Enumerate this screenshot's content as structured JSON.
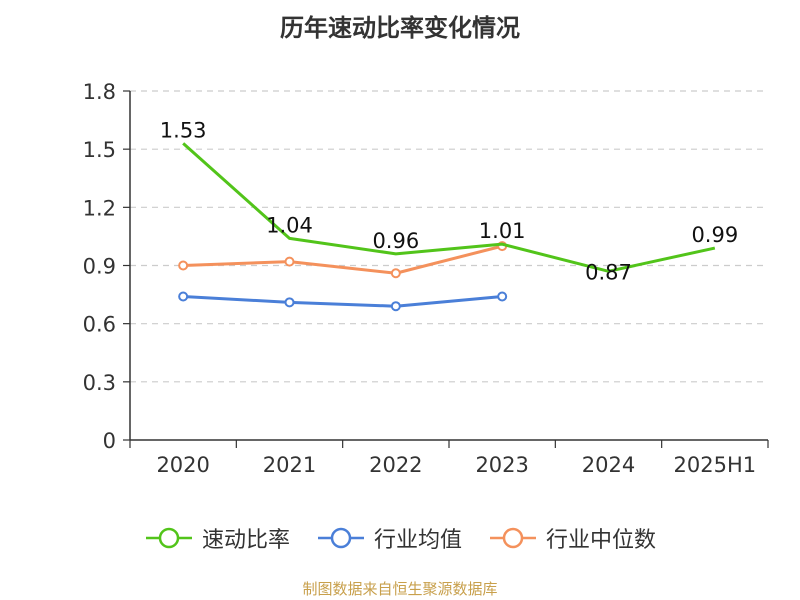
{
  "title": "历年速动比率变化情况",
  "source_note": "制图数据来自恒生聚源数据库",
  "chart_data": {
    "type": "line",
    "categories": [
      "2020",
      "2021",
      "2022",
      "2023",
      "2024",
      "2025H1"
    ],
    "ylim": [
      0,
      1.8
    ],
    "yticks": [
      "0",
      "0.3",
      "0.6",
      "0.9",
      "1.2",
      "1.5",
      "1.8"
    ],
    "grid": true,
    "legend_position": "bottom",
    "series": [
      {
        "name": "速动比率",
        "color": "#52c41a",
        "values": [
          1.53,
          1.04,
          0.96,
          1.01,
          0.87,
          0.99
        ],
        "labels": [
          "1.53",
          "1.04",
          "0.96",
          "1.01",
          "0.87",
          "0.99"
        ],
        "show_points": false
      },
      {
        "name": "行业均值",
        "color": "#4a7fd8",
        "values": [
          0.74,
          0.71,
          0.69,
          0.74,
          null,
          null
        ],
        "show_points": true
      },
      {
        "name": "行业中位数",
        "color": "#f4915c",
        "values": [
          0.9,
          0.92,
          0.86,
          1.0,
          null,
          null
        ],
        "show_points": true
      }
    ]
  }
}
